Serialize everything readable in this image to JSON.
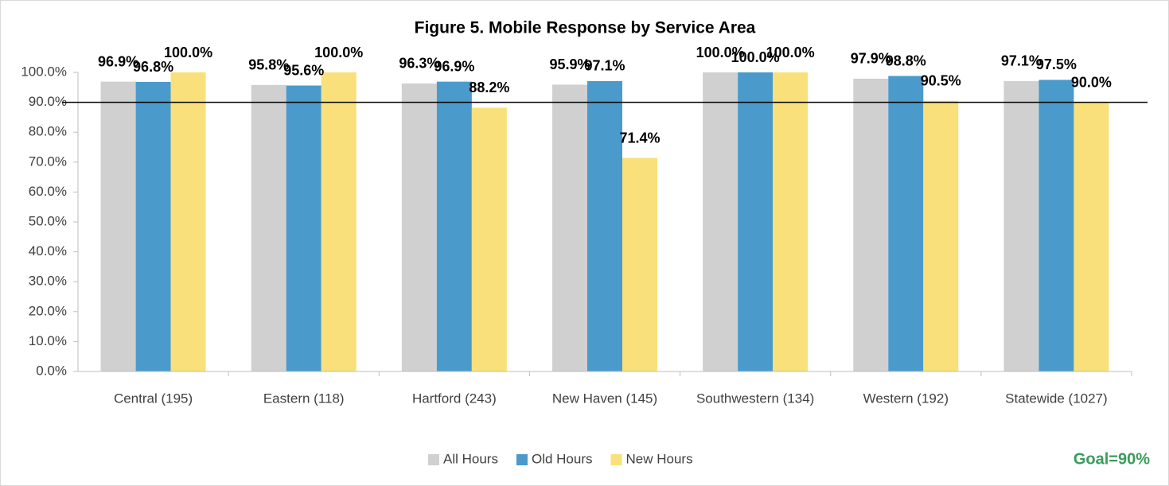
{
  "chart_data": {
    "type": "bar",
    "title": "Figure 5. Mobile Response by Service Area",
    "categories": [
      "Central (195)",
      "Eastern (118)",
      "Hartford (243)",
      "New Haven (145)",
      "Southwestern (134)",
      "Western (192)",
      "Statewide (1027)"
    ],
    "series": [
      {
        "name": "All Hours",
        "color": "#d0d0d0",
        "values": [
          96.9,
          95.8,
          96.3,
          95.9,
          100.0,
          97.9,
          97.1
        ],
        "value_labels": [
          "96.9%",
          "95.8%",
          "96.3%",
          "95.9%",
          "100.0%",
          "97.9%",
          "97.1%"
        ]
      },
      {
        "name": "Old Hours",
        "color": "#4a9acc",
        "values": [
          96.8,
          95.6,
          96.9,
          97.1,
          100.0,
          98.8,
          97.5
        ],
        "value_labels": [
          "96.8%",
          "95.6%",
          "96.9%",
          "97.1%",
          "100.0%",
          "98.8%",
          "97.5%"
        ]
      },
      {
        "name": "New Hours",
        "color": "#f9e07a",
        "values": [
          100.0,
          100.0,
          88.2,
          71.4,
          100.0,
          90.5,
          90.0
        ],
        "value_labels": [
          "100.0%",
          "100.0%",
          "88.2%",
          "71.4%",
          "100.0%",
          "90.5%",
          "90.0%"
        ]
      }
    ],
    "ylim": [
      0,
      100
    ],
    "yticks": [
      {
        "value": 0,
        "label": "0.0%"
      },
      {
        "value": 10,
        "label": "10.0%"
      },
      {
        "value": 20,
        "label": "20.0%"
      },
      {
        "value": 30,
        "label": "30.0%"
      },
      {
        "value": 40,
        "label": "40.0%"
      },
      {
        "value": 50,
        "label": "50.0%"
      },
      {
        "value": 60,
        "label": "60.0%"
      },
      {
        "value": 70,
        "label": "70.0%"
      },
      {
        "value": 80,
        "label": "80.0%"
      },
      {
        "value": 90,
        "label": "90.0%"
      },
      {
        "value": 100,
        "label": "100.0%"
      }
    ],
    "goal": 90,
    "annotation": "Goal=90%",
    "legend": "bottom"
  }
}
